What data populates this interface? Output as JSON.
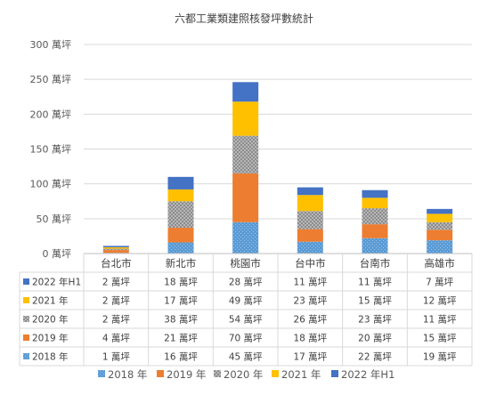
{
  "chart_data": {
    "type": "bar",
    "stacked": true,
    "title": "六都工業類建照核發坪數統計",
    "categories": [
      "台北市",
      "新北市",
      "桃園市",
      "台中市",
      "台南市",
      "高雄市"
    ],
    "yticks": [
      "0 萬坪",
      "50 萬坪",
      "100 萬坪",
      "150 萬坪",
      "200 萬坪",
      "250 萬坪",
      "300 萬坪"
    ],
    "ylim": [
      0,
      300
    ],
    "grid": true,
    "legend_position": "bottom",
    "series": [
      {
        "name": "2018 年",
        "values": [
          1,
          16,
          45,
          17,
          22,
          19
        ],
        "color": "#5b9bd5",
        "pattern": "dots",
        "labels": [
          "1 萬坪",
          "16 萬坪",
          "45 萬坪",
          "17 萬坪",
          "22 萬坪",
          "19 萬坪"
        ]
      },
      {
        "name": "2019 年",
        "values": [
          4,
          21,
          70,
          18,
          20,
          15
        ],
        "color": "#ed7d31",
        "pattern": "solid",
        "labels": [
          "4 萬坪",
          "21 萬坪",
          "70 萬坪",
          "18 萬坪",
          "20 萬坪",
          "15 萬坪"
        ]
      },
      {
        "name": "2020 年",
        "values": [
          2,
          38,
          54,
          26,
          23,
          11
        ],
        "color": "#a5a5a5",
        "pattern": "checker",
        "labels": [
          "2 萬坪",
          "38 萬坪",
          "54 萬坪",
          "26 萬坪",
          "23 萬坪",
          "11 萬坪"
        ]
      },
      {
        "name": "2021 年",
        "values": [
          2,
          17,
          49,
          23,
          15,
          12
        ],
        "color": "#ffc000",
        "pattern": "solid",
        "labels": [
          "2 萬坪",
          "17 萬坪",
          "49 萬坪",
          "23 萬坪",
          "15 萬坪",
          "12 萬坪"
        ]
      },
      {
        "name": "2022 年H1",
        "values": [
          2,
          18,
          28,
          11,
          11,
          7
        ],
        "color": "#4472c4",
        "pattern": "solid",
        "labels": [
          "2 萬坪",
          "18 萬坪",
          "28 萬坪",
          "11 萬坪",
          "11 萬坪",
          "7 萬坪"
        ]
      }
    ]
  }
}
